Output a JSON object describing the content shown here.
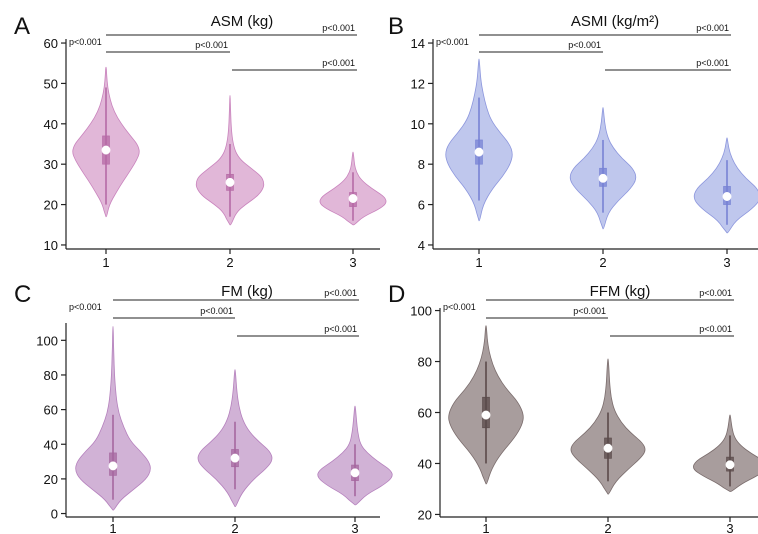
{
  "chart_data": [
    {
      "panel_label": "A",
      "type": "violin",
      "title": "ASM (kg)",
      "colors": {
        "fill": "#dfb3d6",
        "line": "#c983bd",
        "box": "#b66aa6"
      },
      "ylim": [
        9,
        61
      ],
      "yticks": [
        10,
        20,
        30,
        40,
        50,
        60
      ],
      "categories": [
        "1",
        "2",
        "3"
      ],
      "groups": [
        {
          "category": "1",
          "min": 17,
          "max": 54,
          "q1": 30,
          "median": 33.5,
          "q3": 37,
          "whisker_low": 20,
          "whisker_high": 49,
          "density": [
            [
              17,
              0.02
            ],
            [
              20,
              0.1
            ],
            [
              23,
              0.3
            ],
            [
              26,
              0.52
            ],
            [
              29,
              0.76
            ],
            [
              31,
              0.9
            ],
            [
              33,
              1
            ],
            [
              35,
              0.92
            ],
            [
              37,
              0.72
            ],
            [
              40,
              0.45
            ],
            [
              43,
              0.24
            ],
            [
              46,
              0.12
            ],
            [
              49,
              0.05
            ],
            [
              52,
              0.02
            ],
            [
              54,
              0.01
            ]
          ]
        },
        {
          "category": "2",
          "min": 15,
          "max": 47,
          "q1": 23.5,
          "median": 25.5,
          "q3": 27.5,
          "whisker_low": 17,
          "whisker_high": 35,
          "density": [
            [
              15,
              0.03
            ],
            [
              18,
              0.18
            ],
            [
              20,
              0.45
            ],
            [
              22,
              0.8
            ],
            [
              24,
              0.98
            ],
            [
              25.5,
              1
            ],
            [
              27,
              0.92
            ],
            [
              29,
              0.62
            ],
            [
              31,
              0.32
            ],
            [
              33,
              0.16
            ],
            [
              36,
              0.07
            ],
            [
              40,
              0.03
            ],
            [
              44,
              0.015
            ],
            [
              47,
              0.005
            ]
          ]
        },
        {
          "category": "3",
          "min": 15,
          "max": 33,
          "q1": 19.5,
          "median": 21.5,
          "q3": 23,
          "whisker_low": 16,
          "whisker_high": 28,
          "density": [
            [
              15,
              0.04
            ],
            [
              17,
              0.3
            ],
            [
              19,
              0.8
            ],
            [
              20.5,
              1
            ],
            [
              22,
              0.92
            ],
            [
              24,
              0.55
            ],
            [
              26,
              0.25
            ],
            [
              28,
              0.1
            ],
            [
              30,
              0.04
            ],
            [
              33,
              0.01
            ]
          ]
        }
      ],
      "brackets": [
        {
          "label": "p<0.001",
          "from": "1",
          "to": "3"
        },
        {
          "label": "p<0.001",
          "from": "1",
          "to": "2"
        },
        {
          "label": "p<0.001",
          "from": "2",
          "to": "3"
        }
      ]
    },
    {
      "panel_label": "B",
      "type": "violin",
      "title": "ASMI (kg/m²)",
      "colors": {
        "fill": "#bcc4ec",
        "line": "#8c96dd",
        "box": "#7782d4"
      },
      "ylim": [
        3.8,
        14.2
      ],
      "yticks": [
        4,
        6,
        8,
        10,
        12,
        14
      ],
      "categories": [
        "1",
        "2",
        "3"
      ],
      "groups": [
        {
          "category": "1",
          "min": 5.2,
          "max": 13.2,
          "q1": 8.0,
          "median": 8.6,
          "q3": 9.2,
          "whisker_low": 6.2,
          "whisker_high": 11.3,
          "density": [
            [
              5.2,
              0.02
            ],
            [
              6,
              0.12
            ],
            [
              6.8,
              0.4
            ],
            [
              7.4,
              0.7
            ],
            [
              8,
              0.92
            ],
            [
              8.5,
              1
            ],
            [
              9,
              0.9
            ],
            [
              9.6,
              0.6
            ],
            [
              10.2,
              0.35
            ],
            [
              10.8,
              0.22
            ],
            [
              11.5,
              0.12
            ],
            [
              12.2,
              0.05
            ],
            [
              13.2,
              0.01
            ]
          ]
        },
        {
          "category": "2",
          "min": 4.8,
          "max": 10.8,
          "q1": 6.9,
          "median": 7.3,
          "q3": 7.8,
          "whisker_low": 5.6,
          "whisker_high": 9.2,
          "density": [
            [
              4.8,
              0.02
            ],
            [
              5.6,
              0.15
            ],
            [
              6.2,
              0.45
            ],
            [
              6.8,
              0.82
            ],
            [
              7.3,
              1
            ],
            [
              7.8,
              0.88
            ],
            [
              8.3,
              0.55
            ],
            [
              8.8,
              0.3
            ],
            [
              9.3,
              0.14
            ],
            [
              10,
              0.05
            ],
            [
              10.8,
              0.01
            ]
          ]
        },
        {
          "category": "3",
          "min": 4.6,
          "max": 9.3,
          "q1": 6.0,
          "median": 6.4,
          "q3": 6.9,
          "whisker_low": 5.0,
          "whisker_high": 8.2,
          "density": [
            [
              4.6,
              0.03
            ],
            [
              5.2,
              0.25
            ],
            [
              5.8,
              0.75
            ],
            [
              6.3,
              1
            ],
            [
              6.8,
              0.9
            ],
            [
              7.3,
              0.55
            ],
            [
              7.8,
              0.3
            ],
            [
              8.3,
              0.14
            ],
            [
              8.8,
              0.05
            ],
            [
              9.3,
              0.01
            ]
          ]
        }
      ],
      "brackets": [
        {
          "label": "p<0.001",
          "from": "1",
          "to": "3"
        },
        {
          "label": "p<0.001",
          "from": "1",
          "to": "2"
        },
        {
          "label": "p<0.001",
          "from": "2",
          "to": "3"
        }
      ]
    },
    {
      "panel_label": "C",
      "type": "violin",
      "title": "FM (kg)",
      "colors": {
        "fill": "#cfaed4",
        "line": "#b580bd",
        "box": "#a5679f"
      },
      "ylim": [
        -2,
        110
      ],
      "yticks": [
        0,
        20,
        40,
        60,
        80,
        100
      ],
      "categories": [
        "1",
        "2",
        "3"
      ],
      "groups": [
        {
          "category": "1",
          "min": 2,
          "max": 108,
          "q1": 22,
          "median": 27.5,
          "q3": 35,
          "whisker_low": 8,
          "whisker_high": 57,
          "density": [
            [
              2,
              0.02
            ],
            [
              8,
              0.2
            ],
            [
              14,
              0.55
            ],
            [
              20,
              0.88
            ],
            [
              25,
              1
            ],
            [
              30,
              0.95
            ],
            [
              36,
              0.72
            ],
            [
              42,
              0.45
            ],
            [
              50,
              0.28
            ],
            [
              58,
              0.15
            ],
            [
              66,
              0.09
            ],
            [
              76,
              0.05
            ],
            [
              86,
              0.03
            ],
            [
              96,
              0.015
            ],
            [
              108,
              0.005
            ]
          ]
        },
        {
          "category": "2",
          "min": 4,
          "max": 83,
          "q1": 27,
          "median": 32,
          "q3": 37,
          "whisker_low": 14,
          "whisker_high": 53,
          "density": [
            [
              4,
              0.02
            ],
            [
              12,
              0.18
            ],
            [
              20,
              0.5
            ],
            [
              26,
              0.82
            ],
            [
              31,
              1
            ],
            [
              36,
              0.92
            ],
            [
              41,
              0.65
            ],
            [
              47,
              0.38
            ],
            [
              54,
              0.2
            ],
            [
              62,
              0.1
            ],
            [
              70,
              0.05
            ],
            [
              83,
              0.01
            ]
          ]
        },
        {
          "category": "3",
          "min": 5,
          "max": 62,
          "q1": 19,
          "median": 23.5,
          "q3": 28,
          "whisker_low": 10,
          "whisker_high": 40,
          "density": [
            [
              5,
              0.03
            ],
            [
              11,
              0.3
            ],
            [
              16,
              0.72
            ],
            [
              21,
              1
            ],
            [
              25,
              0.95
            ],
            [
              30,
              0.6
            ],
            [
              35,
              0.32
            ],
            [
              40,
              0.14
            ],
            [
              47,
              0.07
            ],
            [
              54,
              0.04
            ],
            [
              62,
              0.01
            ]
          ]
        }
      ],
      "brackets": [
        {
          "label": "p<0.001",
          "from": "1",
          "to": "3"
        },
        {
          "label": "p<0.001",
          "from": "1",
          "to": "2"
        },
        {
          "label": "p<0.001",
          "from": "2",
          "to": "3"
        }
      ]
    },
    {
      "panel_label": "D",
      "type": "violin",
      "title": "FFM (kg)",
      "colors": {
        "fill": "#a39898",
        "line": "#7a6c6c",
        "box": "#5a4a4a"
      },
      "ylim": [
        19,
        101
      ],
      "yticks": [
        20,
        40,
        60,
        80,
        100
      ],
      "categories": [
        "1",
        "2",
        "3"
      ],
      "groups": [
        {
          "category": "1",
          "min": 32,
          "max": 94,
          "q1": 54,
          "median": 59,
          "q3": 66,
          "whisker_low": 40,
          "whisker_high": 80,
          "density": [
            [
              32,
              0.02
            ],
            [
              38,
              0.15
            ],
            [
              44,
              0.4
            ],
            [
              50,
              0.75
            ],
            [
              55,
              0.95
            ],
            [
              59,
              1
            ],
            [
              64,
              0.85
            ],
            [
              69,
              0.55
            ],
            [
              74,
              0.32
            ],
            [
              79,
              0.17
            ],
            [
              84,
              0.08
            ],
            [
              89,
              0.03
            ],
            [
              94,
              0.01
            ]
          ]
        },
        {
          "category": "2",
          "min": 28,
          "max": 81,
          "q1": 42,
          "median": 46,
          "q3": 50,
          "whisker_low": 33,
          "whisker_high": 60,
          "density": [
            [
              28,
              0.02
            ],
            [
              33,
              0.2
            ],
            [
              38,
              0.55
            ],
            [
              42,
              0.85
            ],
            [
              45,
              1
            ],
            [
              48,
              0.92
            ],
            [
              52,
              0.6
            ],
            [
              56,
              0.35
            ],
            [
              61,
              0.16
            ],
            [
              66,
              0.08
            ],
            [
              72,
              0.04
            ],
            [
              81,
              0.01
            ]
          ]
        },
        {
          "category": "3",
          "min": 29,
          "max": 59,
          "q1": 37,
          "median": 39.5,
          "q3": 42.5,
          "whisker_low": 31,
          "whisker_high": 51,
          "density": [
            [
              29,
              0.04
            ],
            [
              32,
              0.3
            ],
            [
              35,
              0.7
            ],
            [
              38,
              1
            ],
            [
              41,
              0.9
            ],
            [
              44,
              0.55
            ],
            [
              47,
              0.28
            ],
            [
              50,
              0.12
            ],
            [
              54,
              0.05
            ],
            [
              59,
              0.01
            ]
          ]
        }
      ],
      "brackets": [
        {
          "label": "p<0.001",
          "from": "1",
          "to": "3"
        },
        {
          "label": "p<0.001",
          "from": "1",
          "to": "2"
        },
        {
          "label": "p<0.001",
          "from": "2",
          "to": "3"
        }
      ]
    }
  ]
}
